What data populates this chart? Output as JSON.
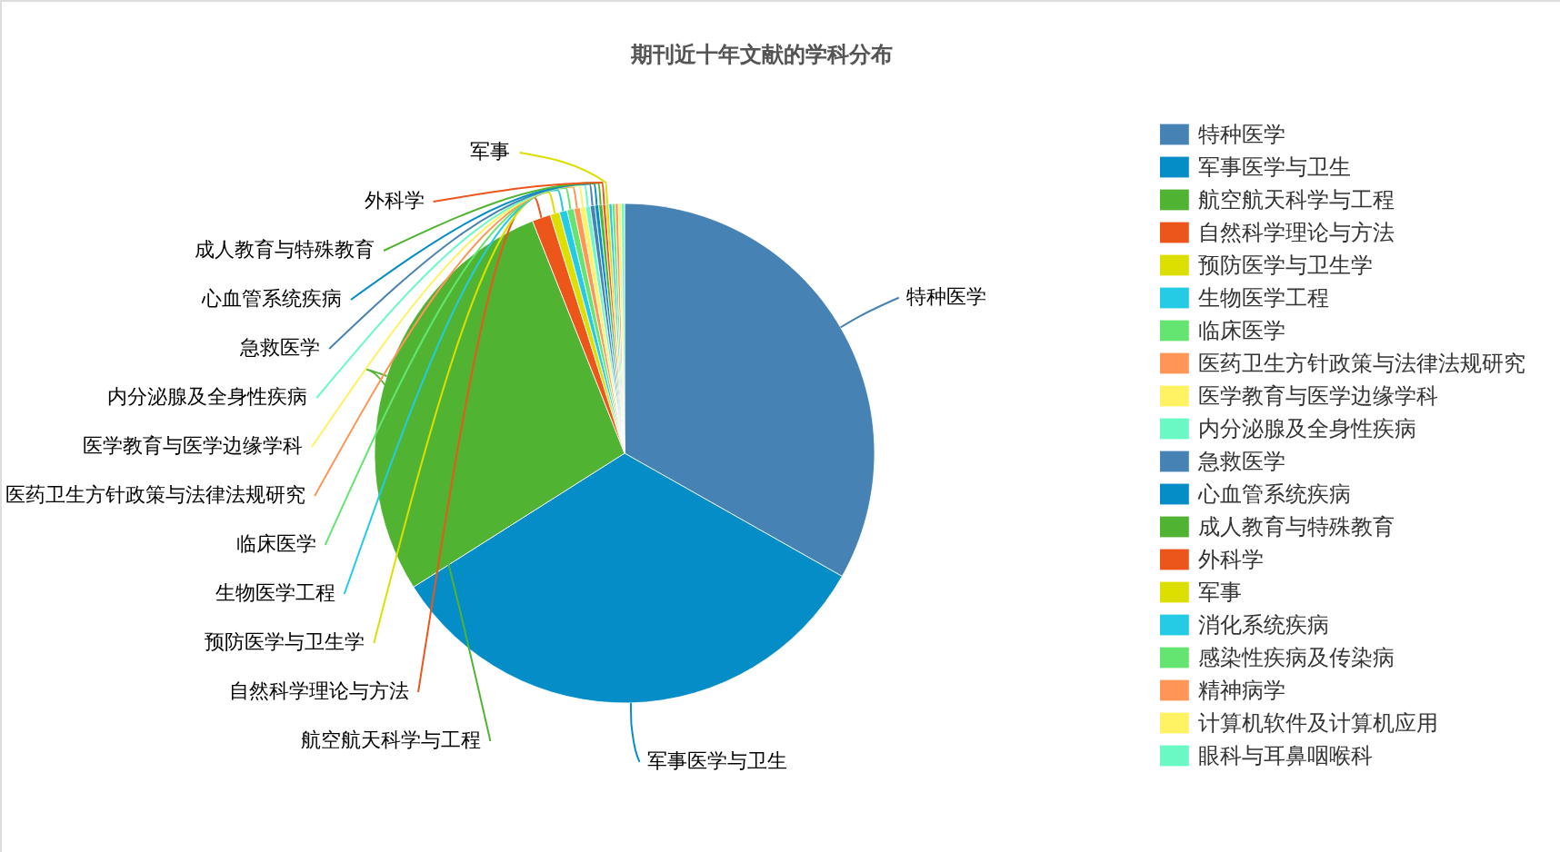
{
  "chart_data": {
    "type": "pie",
    "title": "期刊近十年文献的学科分布",
    "categories": [
      "特种医学",
      "军事医学与卫生",
      "航空航天科学与工程",
      "自然科学理论与方法",
      "预防医学与卫生学",
      "生物医学工程",
      "临床医学",
      "医药卫生方针政策与法律法规研究",
      "医学教育与医学边缘学科",
      "内分泌腺及全身性疾病",
      "急救医学",
      "心血管系统疾病",
      "成人教育与特殊教育",
      "外科学",
      "军事",
      "消化系统疾病",
      "感染性疾病及传染病",
      "精神病学",
      "计算机软件及计算机应用",
      "眼科与耳鼻咽喉科"
    ],
    "values": [
      33.2,
      32.8,
      28.0,
      1.2,
      0.6,
      0.5,
      0.45,
      0.4,
      0.35,
      0.3,
      0.3,
      0.25,
      0.25,
      0.2,
      0.2,
      0.2,
      0.2,
      0.2,
      0.2,
      0.2
    ],
    "colors": [
      "#4682b4",
      "#058dc7",
      "#50b432",
      "#ed561b",
      "#dddf00",
      "#24cbe5",
      "#64e572",
      "#ff9655",
      "#fff263",
      "#6af9c4",
      "#4682b4",
      "#058dc7",
      "#50b432",
      "#ed561b",
      "#dddf00",
      "#24cbe5",
      "#64e572",
      "#ff9655",
      "#fff263",
      "#6af9c4"
    ],
    "legend": "right"
  }
}
